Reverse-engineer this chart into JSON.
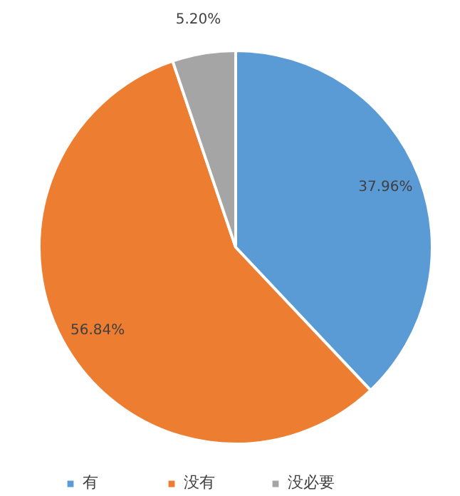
{
  "chart_data": {
    "type": "pie",
    "categories": [
      "有",
      "没有",
      "没必要"
    ],
    "values": [
      37.96,
      56.84,
      5.2
    ],
    "colors": [
      "#5b9bd5",
      "#ed7d31",
      "#a5a5a5"
    ],
    "value_labels": [
      "37.96%",
      "56.84%",
      "5.20%"
    ],
    "legend": "bottom"
  }
}
